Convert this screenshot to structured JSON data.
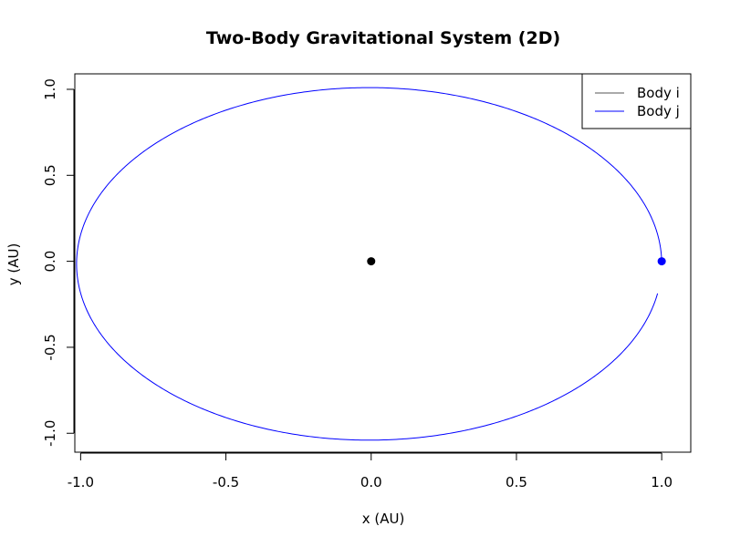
{
  "chart_data": {
    "type": "line",
    "title": "Two-Body Gravitational System (2D)",
    "xlabel": "x (AU)",
    "ylabel": "y (AU)",
    "xlim": [
      -1.02,
      1.1
    ],
    "ylim": [
      -1.11,
      1.09
    ],
    "xticks": [
      -1.0,
      -0.5,
      0.0,
      0.5,
      1.0
    ],
    "xtick_labels": [
      "-1.0",
      "-0.5",
      "0.0",
      "0.5",
      "1.0"
    ],
    "yticks": [
      -1.0,
      -0.5,
      0.0,
      0.5,
      1.0
    ],
    "ytick_labels": [
      "-1.0",
      "-0.5",
      "0.0",
      "0.5",
      "1.0"
    ],
    "grid": false,
    "legend_position": "top-right",
    "series": [
      {
        "name": "Body i",
        "color": "#555555",
        "points": [
          [
            0.0,
            0.0
          ]
        ],
        "marker": {
          "x": 0.0,
          "y": 0.0,
          "color": "#000000"
        }
      },
      {
        "name": "Body j",
        "color": "#0000ff",
        "orbit": {
          "center_x": -0.007,
          "center_y": -0.015,
          "semi_major": 1.007,
          "semi_minor": 1.025,
          "start_angle_deg": 0.85,
          "end_angle_deg": 350.4
        },
        "marker": {
          "x": 1.0,
          "y": 0.0,
          "color": "#0000ff"
        }
      }
    ]
  }
}
